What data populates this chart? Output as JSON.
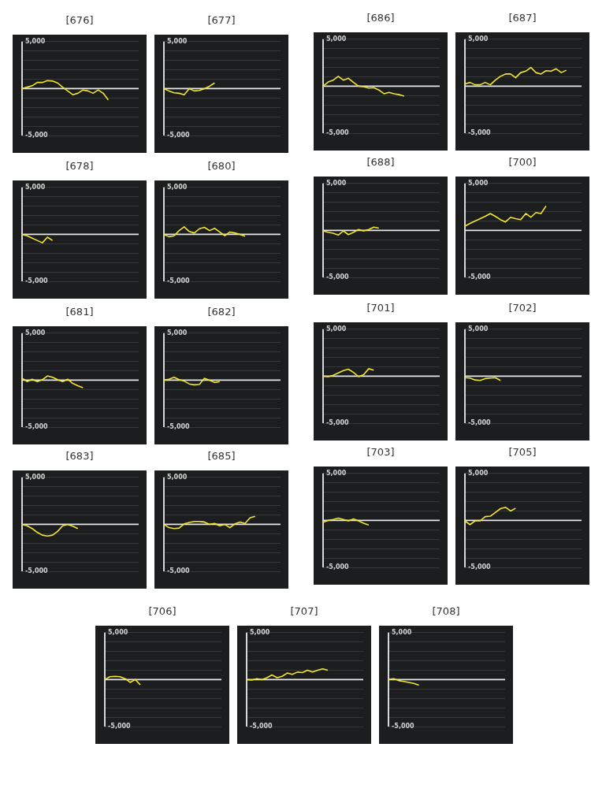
{
  "chart_data": [
    {
      "type": "line",
      "title": "[676]",
      "categories": [
        null,
        null,
        null,
        null,
        null,
        null,
        null,
        null,
        null,
        null,
        null,
        null,
        null,
        null,
        null,
        null,
        null,
        null,
        null,
        null,
        null,
        null,
        null,
        null
      ],
      "series": [
        {
          "color": "#f2e52c",
          "values": [
            0,
            150,
            300,
            650,
            650,
            850,
            800,
            600,
            150,
            -250,
            -650,
            -500,
            -150,
            -250,
            -500,
            -150,
            -500,
            -1200,
            null,
            null,
            null,
            null,
            null,
            null
          ]
        }
      ],
      "ylim": [
        -5000,
        5000
      ],
      "yticks": [
        {
          "value": -5000,
          "label": "-5,000"
        },
        {
          "value": -4000,
          "label": null
        },
        {
          "value": -3000,
          "label": null
        },
        {
          "value": -2000,
          "label": null
        },
        {
          "value": -1000,
          "label": null
        },
        {
          "value": 0,
          "label": null
        },
        {
          "value": 1000,
          "label": null
        },
        {
          "value": 2000,
          "label": null
        },
        {
          "value": 3000,
          "label": null
        },
        {
          "value": 4000,
          "label": null
        },
        {
          "value": 5000,
          "label": "5,000"
        }
      ],
      "grid": "y",
      "tick_labels": "y",
      "marker": "none",
      "legend": false,
      "ref_lines": [
        {
          "axis": "y",
          "value": 0,
          "color": "#e8e8e8"
        }
      ]
    },
    {
      "type": "line",
      "title": "[677]",
      "categories": [
        null,
        null,
        null,
        null,
        null,
        null,
        null,
        null,
        null,
        null,
        null,
        null,
        null,
        null,
        null,
        null,
        null,
        null,
        null,
        null,
        null,
        null,
        null,
        null
      ],
      "series": [
        {
          "color": "#f2e52c",
          "values": [
            0,
            -250,
            -450,
            -500,
            -650,
            0,
            -250,
            -200,
            0,
            250,
            600,
            null,
            null,
            null,
            null,
            null,
            null,
            null,
            null,
            null,
            null,
            null,
            null,
            null
          ]
        }
      ],
      "ylim": [
        -5000,
        5000
      ],
      "yticks": [
        {
          "value": -5000,
          "label": "-5,000"
        },
        {
          "value": -4000,
          "label": null
        },
        {
          "value": -3000,
          "label": null
        },
        {
          "value": -2000,
          "label": null
        },
        {
          "value": -1000,
          "label": null
        },
        {
          "value": 0,
          "label": null
        },
        {
          "value": 1000,
          "label": null
        },
        {
          "value": 2000,
          "label": null
        },
        {
          "value": 3000,
          "label": null
        },
        {
          "value": 4000,
          "label": null
        },
        {
          "value": 5000,
          "label": "5,000"
        }
      ],
      "grid": "y",
      "tick_labels": "y",
      "marker": "none",
      "legend": false,
      "ref_lines": [
        {
          "axis": "y",
          "value": 0,
          "color": "#e8e8e8"
        }
      ]
    },
    {
      "type": "line",
      "title": "[686]",
      "categories": [
        null,
        null,
        null,
        null,
        null,
        null,
        null,
        null,
        null,
        null,
        null,
        null,
        null,
        null,
        null,
        null,
        null,
        null,
        null,
        null,
        null,
        null,
        null,
        null
      ],
      "series": [
        {
          "color": "#f2e52c",
          "values": [
            0,
            450,
            650,
            1050,
            650,
            850,
            400,
            0,
            -50,
            -200,
            -150,
            -400,
            -800,
            -650,
            -800,
            -900,
            -1050,
            null,
            null,
            null,
            null,
            null,
            null,
            null
          ]
        }
      ],
      "ylim": [
        -5000,
        5000
      ],
      "yticks": [
        {
          "value": -5000,
          "label": "-5,000"
        },
        {
          "value": -4000,
          "label": null
        },
        {
          "value": -3000,
          "label": null
        },
        {
          "value": -2000,
          "label": null
        },
        {
          "value": -1000,
          "label": null
        },
        {
          "value": 0,
          "label": null
        },
        {
          "value": 1000,
          "label": null
        },
        {
          "value": 2000,
          "label": null
        },
        {
          "value": 3000,
          "label": null
        },
        {
          "value": 4000,
          "label": null
        },
        {
          "value": 5000,
          "label": "5,000"
        }
      ],
      "grid": "y",
      "tick_labels": "y",
      "marker": "none",
      "legend": false,
      "ref_lines": [
        {
          "axis": "y",
          "value": 0,
          "color": "#e8e8e8"
        }
      ]
    },
    {
      "type": "line",
      "title": "[687]",
      "categories": [
        null,
        null,
        null,
        null,
        null,
        null,
        null,
        null,
        null,
        null,
        null,
        null,
        null,
        null,
        null,
        null,
        null,
        null,
        null,
        null,
        null,
        null,
        null,
        null
      ],
      "series": [
        {
          "color": "#f2e52c",
          "values": [
            250,
            400,
            150,
            150,
            400,
            150,
            650,
            1050,
            1300,
            1300,
            900,
            1450,
            1600,
            2000,
            1450,
            1300,
            1650,
            1600,
            1850,
            1450,
            1700,
            null,
            null,
            null
          ]
        }
      ],
      "ylim": [
        -5000,
        5000
      ],
      "yticks": [
        {
          "value": -5000,
          "label": "-5,000"
        },
        {
          "value": -4000,
          "label": null
        },
        {
          "value": -3000,
          "label": null
        },
        {
          "value": -2000,
          "label": null
        },
        {
          "value": -1000,
          "label": null
        },
        {
          "value": 0,
          "label": null
        },
        {
          "value": 1000,
          "label": null
        },
        {
          "value": 2000,
          "label": null
        },
        {
          "value": 3000,
          "label": null
        },
        {
          "value": 4000,
          "label": null
        },
        {
          "value": 5000,
          "label": "5,000"
        }
      ],
      "grid": "y",
      "tick_labels": "y",
      "marker": "none",
      "legend": false,
      "ref_lines": [
        {
          "axis": "y",
          "value": 0,
          "color": "#e8e8e8"
        }
      ]
    },
    {
      "type": "line",
      "title": "[678]",
      "categories": [
        null,
        null,
        null,
        null,
        null,
        null,
        null,
        null,
        null,
        null,
        null,
        null,
        null,
        null,
        null,
        null,
        null,
        null,
        null,
        null,
        null,
        null,
        null,
        null
      ],
      "series": [
        {
          "color": "#f2e52c",
          "values": [
            0,
            -150,
            -400,
            -650,
            -900,
            -300,
            -650,
            null,
            null,
            null,
            null,
            null,
            null,
            null,
            null,
            null,
            null,
            null,
            null,
            null,
            null,
            null,
            null,
            null
          ]
        }
      ],
      "ylim": [
        -5000,
        5000
      ],
      "yticks": [
        {
          "value": -5000,
          "label": "-5,000"
        },
        {
          "value": -4000,
          "label": null
        },
        {
          "value": -3000,
          "label": null
        },
        {
          "value": -2000,
          "label": null
        },
        {
          "value": -1000,
          "label": null
        },
        {
          "value": 0,
          "label": null
        },
        {
          "value": 1000,
          "label": null
        },
        {
          "value": 2000,
          "label": null
        },
        {
          "value": 3000,
          "label": null
        },
        {
          "value": 4000,
          "label": null
        },
        {
          "value": 5000,
          "label": "5,000"
        }
      ],
      "grid": "y",
      "tick_labels": "y",
      "marker": "none",
      "legend": false,
      "ref_lines": [
        {
          "axis": "y",
          "value": 0,
          "color": "#e8e8e8"
        }
      ]
    },
    {
      "type": "line",
      "title": "[680]",
      "categories": [
        null,
        null,
        null,
        null,
        null,
        null,
        null,
        null,
        null,
        null,
        null,
        null,
        null,
        null,
        null,
        null,
        null,
        null,
        null,
        null,
        null,
        null,
        null,
        null
      ],
      "series": [
        {
          "color": "#f2e52c",
          "values": [
            0,
            -250,
            -150,
            400,
            800,
            300,
            150,
            600,
            750,
            400,
            650,
            250,
            -150,
            250,
            150,
            0,
            -200,
            null,
            null,
            null,
            null,
            null,
            null,
            null
          ]
        }
      ],
      "ylim": [
        -5000,
        5000
      ],
      "yticks": [
        {
          "value": -5000,
          "label": "-5,000"
        },
        {
          "value": -4000,
          "label": null
        },
        {
          "value": -3000,
          "label": null
        },
        {
          "value": -2000,
          "label": null
        },
        {
          "value": -1000,
          "label": null
        },
        {
          "value": 0,
          "label": null
        },
        {
          "value": 1000,
          "label": null
        },
        {
          "value": 2000,
          "label": null
        },
        {
          "value": 3000,
          "label": null
        },
        {
          "value": 4000,
          "label": null
        },
        {
          "value": 5000,
          "label": "5,000"
        }
      ],
      "grid": "y",
      "tick_labels": "y",
      "marker": "none",
      "legend": false,
      "ref_lines": [
        {
          "axis": "y",
          "value": 0,
          "color": "#e8e8e8"
        }
      ]
    },
    {
      "type": "line",
      "title": "[688]",
      "categories": [
        null,
        null,
        null,
        null,
        null,
        null,
        null,
        null,
        null,
        null,
        null,
        null,
        null,
        null,
        null,
        null,
        null,
        null,
        null,
        null,
        null,
        null,
        null,
        null
      ],
      "series": [
        {
          "color": "#f2e52c",
          "values": [
            -50,
            -200,
            -300,
            -500,
            -50,
            -450,
            -200,
            100,
            -50,
            100,
            350,
            250,
            null,
            null,
            null,
            null,
            null,
            null,
            null,
            null,
            null,
            null,
            null,
            null
          ]
        }
      ],
      "ylim": [
        -5000,
        5000
      ],
      "yticks": [
        {
          "value": -5000,
          "label": "-5,000"
        },
        {
          "value": -4000,
          "label": null
        },
        {
          "value": -3000,
          "label": null
        },
        {
          "value": -2000,
          "label": null
        },
        {
          "value": -1000,
          "label": null
        },
        {
          "value": 0,
          "label": null
        },
        {
          "value": 1000,
          "label": null
        },
        {
          "value": 2000,
          "label": null
        },
        {
          "value": 3000,
          "label": null
        },
        {
          "value": 4000,
          "label": null
        },
        {
          "value": 5000,
          "label": "5,000"
        }
      ],
      "grid": "y",
      "tick_labels": "y",
      "marker": "none",
      "legend": false,
      "ref_lines": [
        {
          "axis": "y",
          "value": 0,
          "color": "#e8e8e8"
        }
      ]
    },
    {
      "type": "line",
      "title": "[700]",
      "categories": [
        null,
        null,
        null,
        null,
        null,
        null,
        null,
        null,
        null,
        null,
        null,
        null,
        null,
        null,
        null,
        null,
        null,
        null,
        null,
        null,
        null,
        null,
        null,
        null
      ],
      "series": [
        {
          "color": "#f2e52c",
          "values": [
            450,
            750,
            1000,
            1250,
            1500,
            1800,
            1500,
            1150,
            900,
            1400,
            1250,
            1150,
            1800,
            1400,
            1900,
            1800,
            2600,
            null,
            null,
            null,
            null,
            null,
            null,
            null
          ]
        }
      ],
      "ylim": [
        -5000,
        5000
      ],
      "yticks": [
        {
          "value": -5000,
          "label": "-5,000"
        },
        {
          "value": -4000,
          "label": null
        },
        {
          "value": -3000,
          "label": null
        },
        {
          "value": -2000,
          "label": null
        },
        {
          "value": -1000,
          "label": null
        },
        {
          "value": 0,
          "label": null
        },
        {
          "value": 1000,
          "label": null
        },
        {
          "value": 2000,
          "label": null
        },
        {
          "value": 3000,
          "label": null
        },
        {
          "value": 4000,
          "label": null
        },
        {
          "value": 5000,
          "label": "5,000"
        }
      ],
      "grid": "y",
      "tick_labels": "y",
      "marker": "none",
      "legend": false,
      "ref_lines": [
        {
          "axis": "y",
          "value": 0,
          "color": "#e8e8e8"
        }
      ]
    },
    {
      "type": "line",
      "title": "[681]",
      "categories": [
        null,
        null,
        null,
        null,
        null,
        null,
        null,
        null,
        null,
        null,
        null,
        null,
        null,
        null,
        null,
        null,
        null,
        null,
        null,
        null,
        null,
        null,
        null,
        null
      ],
      "series": [
        {
          "color": "#f2e52c",
          "values": [
            200,
            -150,
            100,
            -150,
            50,
            450,
            300,
            50,
            -150,
            100,
            -350,
            -600,
            -800,
            null,
            null,
            null,
            null,
            null,
            null,
            null,
            null,
            null,
            null,
            null
          ]
        }
      ],
      "ylim": [
        -5000,
        5000
      ],
      "yticks": [
        {
          "value": -5000,
          "label": "-5,000"
        },
        {
          "value": -4000,
          "label": null
        },
        {
          "value": -3000,
          "label": null
        },
        {
          "value": -2000,
          "label": null
        },
        {
          "value": -1000,
          "label": null
        },
        {
          "value": 0,
          "label": null
        },
        {
          "value": 1000,
          "label": null
        },
        {
          "value": 2000,
          "label": null
        },
        {
          "value": 3000,
          "label": null
        },
        {
          "value": 4000,
          "label": null
        },
        {
          "value": 5000,
          "label": "5,000"
        }
      ],
      "grid": "y",
      "tick_labels": "y",
      "marker": "none",
      "legend": false,
      "ref_lines": [
        {
          "axis": "y",
          "value": 0,
          "color": "#e8e8e8"
        }
      ]
    },
    {
      "type": "line",
      "title": "[682]",
      "categories": [
        null,
        null,
        null,
        null,
        null,
        null,
        null,
        null,
        null,
        null,
        null,
        null,
        null,
        null,
        null,
        null,
        null,
        null,
        null,
        null,
        null,
        null,
        null,
        null
      ],
      "series": [
        {
          "color": "#f2e52c",
          "values": [
            0,
            100,
            300,
            50,
            -100,
            -400,
            -500,
            -450,
            200,
            0,
            -250,
            -150,
            null,
            null,
            null,
            null,
            null,
            null,
            null,
            null,
            null,
            null,
            null,
            null
          ]
        }
      ],
      "ylim": [
        -5000,
        5000
      ],
      "yticks": [
        {
          "value": -5000,
          "label": "-5,000"
        },
        {
          "value": -4000,
          "label": null
        },
        {
          "value": -3000,
          "label": null
        },
        {
          "value": -2000,
          "label": null
        },
        {
          "value": -1000,
          "label": null
        },
        {
          "value": 0,
          "label": null
        },
        {
          "value": 1000,
          "label": null
        },
        {
          "value": 2000,
          "label": null
        },
        {
          "value": 3000,
          "label": null
        },
        {
          "value": 4000,
          "label": null
        },
        {
          "value": 5000,
          "label": "5,000"
        }
      ],
      "grid": "y",
      "tick_labels": "y",
      "marker": "none",
      "legend": false,
      "ref_lines": [
        {
          "axis": "y",
          "value": 0,
          "color": "#e8e8e8"
        }
      ]
    },
    {
      "type": "line",
      "title": "[701]",
      "categories": [
        null,
        null,
        null,
        null,
        null,
        null,
        null,
        null,
        null,
        null,
        null,
        null,
        null,
        null,
        null,
        null,
        null,
        null,
        null,
        null,
        null,
        null,
        null,
        null
      ],
      "series": [
        {
          "color": "#f2e52c",
          "values": [
            0,
            -50,
            100,
            350,
            600,
            750,
            400,
            -50,
            150,
            800,
            650,
            null,
            null,
            null,
            null,
            null,
            null,
            null,
            null,
            null,
            null,
            null,
            null,
            null
          ]
        }
      ],
      "ylim": [
        -5000,
        5000
      ],
      "yticks": [
        {
          "value": -5000,
          "label": "-5,000"
        },
        {
          "value": -4000,
          "label": null
        },
        {
          "value": -3000,
          "label": null
        },
        {
          "value": -2000,
          "label": null
        },
        {
          "value": -1000,
          "label": null
        },
        {
          "value": 0,
          "label": null
        },
        {
          "value": 1000,
          "label": null
        },
        {
          "value": 2000,
          "label": null
        },
        {
          "value": 3000,
          "label": null
        },
        {
          "value": 4000,
          "label": null
        },
        {
          "value": 5000,
          "label": "5,000"
        }
      ],
      "grid": "y",
      "tick_labels": "y",
      "marker": "none",
      "legend": false,
      "ref_lines": [
        {
          "axis": "y",
          "value": 0,
          "color": "#e8e8e8"
        }
      ]
    },
    {
      "type": "line",
      "title": "[702]",
      "categories": [
        null,
        null,
        null,
        null,
        null,
        null,
        null,
        null,
        null,
        null,
        null,
        null,
        null,
        null,
        null,
        null,
        null,
        null,
        null,
        null,
        null,
        null,
        null,
        null
      ],
      "series": [
        {
          "color": "#f2e52c",
          "values": [
            -150,
            -200,
            -400,
            -450,
            -250,
            -200,
            -150,
            -450,
            null,
            null,
            null,
            null,
            null,
            null,
            null,
            null,
            null,
            null,
            null,
            null,
            null,
            null,
            null,
            null
          ]
        }
      ],
      "ylim": [
        -5000,
        5000
      ],
      "yticks": [
        {
          "value": -5000,
          "label": "-5,000"
        },
        {
          "value": -4000,
          "label": null
        },
        {
          "value": -3000,
          "label": null
        },
        {
          "value": -2000,
          "label": null
        },
        {
          "value": -1000,
          "label": null
        },
        {
          "value": 0,
          "label": null
        },
        {
          "value": 1000,
          "label": null
        },
        {
          "value": 2000,
          "label": null
        },
        {
          "value": 3000,
          "label": null
        },
        {
          "value": 4000,
          "label": null
        },
        {
          "value": 5000,
          "label": "5,000"
        }
      ],
      "grid": "y",
      "tick_labels": "y",
      "marker": "none",
      "legend": false,
      "ref_lines": [
        {
          "axis": "y",
          "value": 0,
          "color": "#e8e8e8"
        }
      ]
    },
    {
      "type": "line",
      "title": "[683]",
      "categories": [
        null,
        null,
        null,
        null,
        null,
        null,
        null,
        null,
        null,
        null,
        null,
        null,
        null,
        null,
        null,
        null,
        null,
        null,
        null,
        null,
        null,
        null,
        null,
        null
      ],
      "series": [
        {
          "color": "#f2e52c",
          "values": [
            0,
            -150,
            -450,
            -850,
            -1150,
            -1250,
            -1150,
            -750,
            -150,
            0,
            -200,
            -450,
            null,
            null,
            null,
            null,
            null,
            null,
            null,
            null,
            null,
            null,
            null,
            null
          ]
        }
      ],
      "ylim": [
        -5000,
        5000
      ],
      "yticks": [
        {
          "value": -5000,
          "label": "-5,000"
        },
        {
          "value": -4000,
          "label": null
        },
        {
          "value": -3000,
          "label": null
        },
        {
          "value": -2000,
          "label": null
        },
        {
          "value": -1000,
          "label": null
        },
        {
          "value": 0,
          "label": null
        },
        {
          "value": 1000,
          "label": null
        },
        {
          "value": 2000,
          "label": null
        },
        {
          "value": 3000,
          "label": null
        },
        {
          "value": 4000,
          "label": null
        },
        {
          "value": 5000,
          "label": "5,000"
        }
      ],
      "grid": "y",
      "tick_labels": "y",
      "marker": "none",
      "legend": false,
      "ref_lines": [
        {
          "axis": "y",
          "value": 0,
          "color": "#e8e8e8"
        }
      ]
    },
    {
      "type": "line",
      "title": "[685]",
      "categories": [
        null,
        null,
        null,
        null,
        null,
        null,
        null,
        null,
        null,
        null,
        null,
        null,
        null,
        null,
        null,
        null,
        null,
        null,
        null,
        null,
        null,
        null,
        null,
        null
      ],
      "series": [
        {
          "color": "#f2e52c",
          "values": [
            0,
            -350,
            -450,
            -400,
            50,
            200,
            300,
            300,
            250,
            0,
            100,
            -150,
            0,
            -350,
            50,
            250,
            100,
            700,
            850,
            null,
            null,
            null,
            null,
            null
          ]
        }
      ],
      "ylim": [
        -5000,
        5000
      ],
      "yticks": [
        {
          "value": -5000,
          "label": "-5,000"
        },
        {
          "value": -4000,
          "label": null
        },
        {
          "value": -3000,
          "label": null
        },
        {
          "value": -2000,
          "label": null
        },
        {
          "value": -1000,
          "label": null
        },
        {
          "value": 0,
          "label": null
        },
        {
          "value": 1000,
          "label": null
        },
        {
          "value": 2000,
          "label": null
        },
        {
          "value": 3000,
          "label": null
        },
        {
          "value": 4000,
          "label": null
        },
        {
          "value": 5000,
          "label": "5,000"
        }
      ],
      "grid": "y",
      "tick_labels": "y",
      "marker": "none",
      "legend": false,
      "ref_lines": [
        {
          "axis": "y",
          "value": 0,
          "color": "#e8e8e8"
        }
      ]
    },
    {
      "type": "line",
      "title": "[703]",
      "categories": [
        null,
        null,
        null,
        null,
        null,
        null,
        null,
        null,
        null,
        null,
        null,
        null,
        null,
        null,
        null,
        null,
        null,
        null,
        null,
        null,
        null,
        null,
        null,
        null
      ],
      "series": [
        {
          "color": "#f2e52c",
          "values": [
            -200,
            0,
            100,
            250,
            100,
            -50,
            150,
            -50,
            -300,
            -500,
            null,
            null,
            null,
            null,
            null,
            null,
            null,
            null,
            null,
            null,
            null,
            null,
            null,
            null
          ]
        }
      ],
      "ylim": [
        -5000,
        5000
      ],
      "yticks": [
        {
          "value": -5000,
          "label": "-5,000"
        },
        {
          "value": -4000,
          "label": null
        },
        {
          "value": -3000,
          "label": null
        },
        {
          "value": -2000,
          "label": null
        },
        {
          "value": -1000,
          "label": null
        },
        {
          "value": 0,
          "label": null
        },
        {
          "value": 1000,
          "label": null
        },
        {
          "value": 2000,
          "label": null
        },
        {
          "value": 3000,
          "label": null
        },
        {
          "value": 4000,
          "label": null
        },
        {
          "value": 5000,
          "label": "5,000"
        }
      ],
      "grid": "y",
      "tick_labels": "y",
      "marker": "none",
      "legend": false,
      "ref_lines": [
        {
          "axis": "y",
          "value": 0,
          "color": "#e8e8e8"
        }
      ]
    },
    {
      "type": "line",
      "title": "[705]",
      "categories": [
        null,
        null,
        null,
        null,
        null,
        null,
        null,
        null,
        null,
        null,
        null,
        null,
        null,
        null,
        null,
        null,
        null,
        null,
        null,
        null,
        null,
        null,
        null,
        null
      ],
      "series": [
        {
          "color": "#f2e52c",
          "values": [
            -50,
            -450,
            -50,
            -50,
            400,
            450,
            850,
            1250,
            1400,
            1000,
            1300,
            null,
            null,
            null,
            null,
            null,
            null,
            null,
            null,
            null,
            null,
            null,
            null,
            null
          ]
        }
      ],
      "ylim": [
        -5000,
        5000
      ],
      "yticks": [
        {
          "value": -5000,
          "label": "-5,000"
        },
        {
          "value": -4000,
          "label": null
        },
        {
          "value": -3000,
          "label": null
        },
        {
          "value": -2000,
          "label": null
        },
        {
          "value": -1000,
          "label": null
        },
        {
          "value": 0,
          "label": null
        },
        {
          "value": 1000,
          "label": null
        },
        {
          "value": 2000,
          "label": null
        },
        {
          "value": 3000,
          "label": null
        },
        {
          "value": 4000,
          "label": null
        },
        {
          "value": 5000,
          "label": "5,000"
        }
      ],
      "grid": "y",
      "tick_labels": "y",
      "marker": "none",
      "legend": false,
      "ref_lines": [
        {
          "axis": "y",
          "value": 0,
          "color": "#e8e8e8"
        }
      ]
    },
    {
      "type": "line",
      "title": "[706]",
      "categories": [
        null,
        null,
        null,
        null,
        null,
        null,
        null,
        null,
        null,
        null,
        null,
        null,
        null,
        null,
        null,
        null,
        null,
        null,
        null,
        null,
        null,
        null,
        null,
        null
      ],
      "series": [
        {
          "color": "#f2e52c",
          "values": [
            0,
            300,
            350,
            300,
            100,
            -300,
            0,
            -550,
            null,
            null,
            null,
            null,
            null,
            null,
            null,
            null,
            null,
            null,
            null,
            null,
            null,
            null,
            null,
            null
          ]
        }
      ],
      "ylim": [
        -5000,
        5000
      ],
      "yticks": [
        {
          "value": -5000,
          "label": "-5,000"
        },
        {
          "value": -4000,
          "label": null
        },
        {
          "value": -3000,
          "label": null
        },
        {
          "value": -2000,
          "label": null
        },
        {
          "value": -1000,
          "label": null
        },
        {
          "value": 0,
          "label": null
        },
        {
          "value": 1000,
          "label": null
        },
        {
          "value": 2000,
          "label": null
        },
        {
          "value": 3000,
          "label": null
        },
        {
          "value": 4000,
          "label": null
        },
        {
          "value": 5000,
          "label": "5,000"
        }
      ],
      "grid": "y",
      "tick_labels": "y",
      "marker": "none",
      "legend": false,
      "ref_lines": [
        {
          "axis": "y",
          "value": 0,
          "color": "#e8e8e8"
        }
      ]
    },
    {
      "type": "line",
      "title": "[707]",
      "categories": [
        null,
        null,
        null,
        null,
        null,
        null,
        null,
        null,
        null,
        null,
        null,
        null,
        null,
        null,
        null,
        null,
        null,
        null,
        null,
        null,
        null,
        null,
        null,
        null
      ],
      "series": [
        {
          "color": "#f2e52c",
          "values": [
            0,
            -50,
            100,
            0,
            200,
            500,
            200,
            350,
            700,
            550,
            800,
            750,
            1000,
            800,
            1000,
            1150,
            1000,
            null,
            null,
            null,
            null,
            null,
            null,
            null
          ]
        }
      ],
      "ylim": [
        -5000,
        5000
      ],
      "yticks": [
        {
          "value": -5000,
          "label": "-5,000"
        },
        {
          "value": -4000,
          "label": null
        },
        {
          "value": -3000,
          "label": null
        },
        {
          "value": -2000,
          "label": null
        },
        {
          "value": -1000,
          "label": null
        },
        {
          "value": 0,
          "label": null
        },
        {
          "value": 1000,
          "label": null
        },
        {
          "value": 2000,
          "label": null
        },
        {
          "value": 3000,
          "label": null
        },
        {
          "value": 4000,
          "label": null
        },
        {
          "value": 5000,
          "label": "5,000"
        }
      ],
      "grid": "y",
      "tick_labels": "y",
      "marker": "none",
      "legend": false,
      "ref_lines": [
        {
          "axis": "y",
          "value": 0,
          "color": "#e8e8e8"
        }
      ]
    },
    {
      "type": "line",
      "title": "[708]",
      "categories": [
        null,
        null,
        null,
        null,
        null,
        null,
        null,
        null,
        null,
        null,
        null,
        null,
        null,
        null,
        null,
        null,
        null,
        null,
        null,
        null,
        null,
        null,
        null,
        null
      ],
      "series": [
        {
          "color": "#f2e52c",
          "values": [
            0,
            100,
            -100,
            -200,
            -300,
            -400,
            -600,
            null,
            null,
            null,
            null,
            null,
            null,
            null,
            null,
            null,
            null,
            null,
            null,
            null,
            null,
            null,
            null,
            null
          ]
        }
      ],
      "ylim": [
        -5000,
        5000
      ],
      "yticks": [
        {
          "value": -5000,
          "label": "-5,000"
        },
        {
          "value": -4000,
          "label": null
        },
        {
          "value": -3000,
          "label": null
        },
        {
          "value": -2000,
          "label": null
        },
        {
          "value": -1000,
          "label": null
        },
        {
          "value": 0,
          "label": null
        },
        {
          "value": 1000,
          "label": null
        },
        {
          "value": 2000,
          "label": null
        },
        {
          "value": 3000,
          "label": null
        },
        {
          "value": 4000,
          "label": null
        },
        {
          "value": 5000,
          "label": "5,000"
        }
      ],
      "grid": "y",
      "tick_labels": "y",
      "marker": "none",
      "legend": false,
      "ref_lines": [
        {
          "axis": "y",
          "value": 0,
          "color": "#e8e8e8"
        }
      ]
    }
  ]
}
